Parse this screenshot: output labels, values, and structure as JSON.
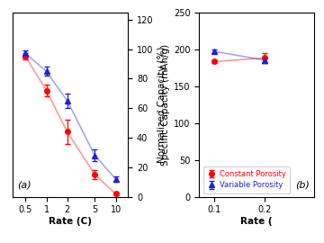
{
  "chart_data": [
    {
      "type": "line",
      "xlabel": "Rate (C)",
      "ylabel": "Normalized Capacity (%)",
      "log": "x",
      "x": [
        0.5,
        1,
        2,
        5,
        10
      ],
      "xlim": [
        0.33,
        15
      ],
      "xticks": [
        0.5,
        1,
        2,
        5,
        10
      ],
      "ylim": [
        0,
        125
      ],
      "yticks": [
        0,
        20,
        40,
        60,
        80,
        100,
        120
      ],
      "annotations": [
        "(a)"
      ],
      "series": [
        {
          "color": "#FF0000",
          "marker": "circle",
          "line_style": "solid",
          "values": [
            95,
            72,
            44,
            15,
            2
          ],
          "errors": [
            2,
            4,
            8,
            3,
            1
          ]
        },
        {
          "color": "#2222CC",
          "marker": "triangle",
          "line_style": "solid",
          "values": [
            97,
            85,
            65,
            28,
            12
          ],
          "errors": [
            2,
            3,
            5,
            4,
            2
          ]
        }
      ]
    },
    {
      "type": "line",
      "xlabel": "Rate (",
      "ylabel": "Specific Capacity (mAh/g)",
      "x": [
        0.1,
        0.2
      ],
      "xlim": [
        0.07,
        0.3
      ],
      "xticks": [
        0.1,
        0.2
      ],
      "ylim": [
        0,
        250
      ],
      "yticks": [
        0,
        50,
        100,
        150,
        200,
        250
      ],
      "annotations": [
        "(b)"
      ],
      "legend": "lower left",
      "series": [
        {
          "name": "Constant Porosity",
          "color": "#FF0000",
          "marker": "circle",
          "line_style": "solid",
          "values": [
            183,
            188
          ],
          "errors": [
            2,
            7
          ]
        },
        {
          "name": "Variable Porosity",
          "color": "#2222CC",
          "marker": "triangle",
          "line_style": "solid",
          "values": [
            197,
            185
          ],
          "errors": [
            2,
            4
          ]
        }
      ]
    }
  ]
}
